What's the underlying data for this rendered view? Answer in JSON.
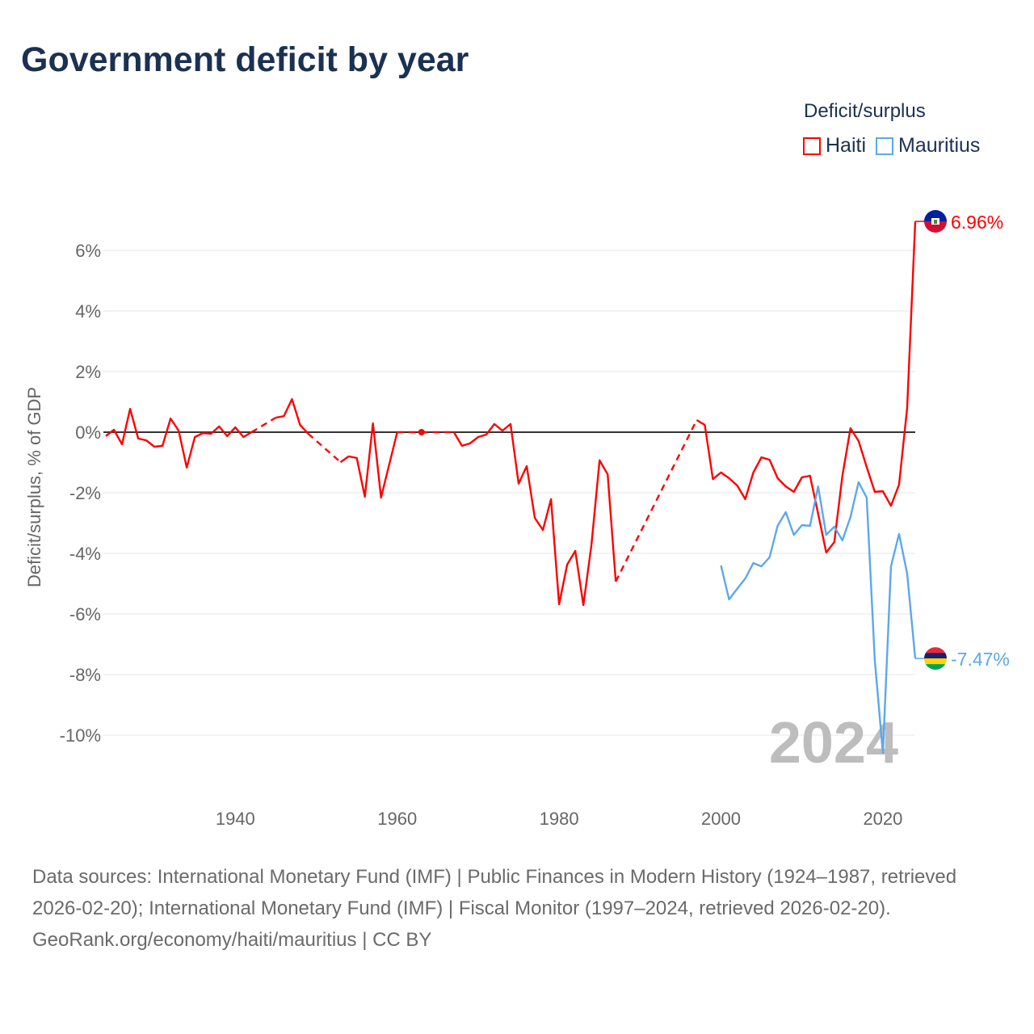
{
  "title": "Government deficit by year",
  "legend": {
    "title": "Deficit/surplus",
    "items": [
      {
        "label": "Haiti",
        "color": "#ff0000"
      },
      {
        "label": "Mauritius",
        "color": "#5ba8ec"
      }
    ]
  },
  "footer": {
    "sources": "Data sources: International Monetary Fund (IMF) | Public Finances in Modern History (1924–1987, retrieved 2026-02-20); International Monetary Fund (IMF) | Fiscal Monitor (1997–2024, retrieved 2026-02-20).",
    "attribution": "GeoRank.org/economy/haiti/mauritius | CC BY"
  },
  "chart_data": {
    "type": "line",
    "title": "Government deficit by year",
    "xlabel": "",
    "ylabel": "Deficit/surplus, % of GDP",
    "xlim": [
      1924,
      2024
    ],
    "ylim": [
      -11.5,
      7.5
    ],
    "x_ticks": [
      1940,
      1960,
      1980,
      2000,
      2020
    ],
    "y_ticks": [
      6,
      4,
      2,
      0,
      -2,
      -4,
      -6,
      -8,
      -10
    ],
    "y_tick_labels": [
      "6%",
      "4%",
      "2%",
      "0%",
      "-2%",
      "-4%",
      "-6%",
      "-8%",
      "-10%"
    ],
    "current_year_label": "2024",
    "series": [
      {
        "name": "Haiti",
        "color": "#ff0000",
        "end_label": "6.96%",
        "points": [
          [
            1924,
            -0.13
          ],
          [
            1925,
            0.08
          ],
          [
            1926,
            -0.4
          ],
          [
            1927,
            0.77
          ],
          [
            1928,
            -0.21
          ],
          [
            1929,
            -0.27
          ],
          [
            1930,
            -0.48
          ],
          [
            1931,
            -0.45
          ],
          [
            1932,
            0.45
          ],
          [
            1933,
            0.05
          ],
          [
            1934,
            -1.17
          ],
          [
            1935,
            -0.16
          ],
          [
            1936,
            -0.03
          ],
          [
            1937,
            -0.05
          ],
          [
            1938,
            0.19
          ],
          [
            1939,
            -0.13
          ],
          [
            1940,
            0.16
          ],
          [
            1941,
            -0.16
          ],
          [
            1942,
            0.0
          ],
          [
            1945,
            0.48
          ],
          [
            1946,
            0.53
          ],
          [
            1947,
            1.09
          ],
          [
            1948,
            0.24
          ],
          [
            1949,
            -0.05
          ],
          [
            1953,
            -0.99
          ],
          [
            1954,
            -0.8
          ],
          [
            1955,
            -0.85
          ],
          [
            1956,
            -2.13
          ],
          [
            1957,
            0.29
          ],
          [
            1958,
            -2.16
          ],
          [
            1959,
            -1.08
          ],
          [
            1960,
            0.0
          ],
          [
            1963,
            0.0
          ],
          [
            1967,
            0.0
          ],
          [
            1968,
            -0.45
          ],
          [
            1969,
            -0.37
          ],
          [
            1970,
            -0.16
          ],
          [
            1971,
            -0.08
          ],
          [
            1972,
            0.27
          ],
          [
            1973,
            0.05
          ],
          [
            1974,
            0.27
          ],
          [
            1975,
            -1.7
          ],
          [
            1976,
            -1.12
          ],
          [
            1977,
            -2.83
          ],
          [
            1978,
            -3.23
          ],
          [
            1979,
            -2.21
          ],
          [
            1980,
            -5.68
          ],
          [
            1981,
            -4.37
          ],
          [
            1982,
            -3.92
          ],
          [
            1983,
            -5.71
          ],
          [
            1984,
            -3.71
          ],
          [
            1985,
            -0.93
          ],
          [
            1986,
            -1.39
          ],
          [
            1987,
            -4.93
          ],
          [
            1997,
            0.4
          ],
          [
            1998,
            0.24
          ],
          [
            1999,
            -1.55
          ],
          [
            2000,
            -1.33
          ],
          [
            2001,
            -1.52
          ],
          [
            2002,
            -1.76
          ],
          [
            2003,
            -2.21
          ],
          [
            2004,
            -1.33
          ],
          [
            2005,
            -0.83
          ],
          [
            2006,
            -0.91
          ],
          [
            2007,
            -1.52
          ],
          [
            2008,
            -1.79
          ],
          [
            2009,
            -1.97
          ],
          [
            2010,
            -1.49
          ],
          [
            2011,
            -1.44
          ],
          [
            2012,
            -2.69
          ],
          [
            2013,
            -3.97
          ],
          [
            2014,
            -3.63
          ],
          [
            2015,
            -1.44
          ],
          [
            2016,
            0.13
          ],
          [
            2017,
            -0.29
          ],
          [
            2018,
            -1.15
          ],
          [
            2019,
            -1.97
          ],
          [
            2020,
            -1.95
          ],
          [
            2021,
            -2.43
          ],
          [
            2022,
            -1.73
          ],
          [
            2023,
            0.8
          ],
          [
            2024,
            6.96
          ]
        ]
      },
      {
        "name": "Mauritius",
        "color": "#5ba8ec",
        "end_label": "-7.47%",
        "points": [
          [
            2000,
            -4.4
          ],
          [
            2001,
            -5.52
          ],
          [
            2002,
            -5.17
          ],
          [
            2003,
            -4.83
          ],
          [
            2004,
            -4.32
          ],
          [
            2005,
            -4.43
          ],
          [
            2006,
            -4.13
          ],
          [
            2007,
            -3.09
          ],
          [
            2008,
            -2.64
          ],
          [
            2009,
            -3.39
          ],
          [
            2010,
            -3.07
          ],
          [
            2011,
            -3.09
          ],
          [
            2012,
            -1.79
          ],
          [
            2013,
            -3.39
          ],
          [
            2014,
            -3.12
          ],
          [
            2015,
            -3.57
          ],
          [
            2016,
            -2.8
          ],
          [
            2017,
            -1.65
          ],
          [
            2018,
            -2.16
          ],
          [
            2019,
            -7.52
          ],
          [
            2020,
            -10.59
          ],
          [
            2021,
            -4.43
          ],
          [
            2022,
            -3.36
          ],
          [
            2023,
            -4.67
          ],
          [
            2024,
            -7.47
          ]
        ]
      }
    ]
  }
}
